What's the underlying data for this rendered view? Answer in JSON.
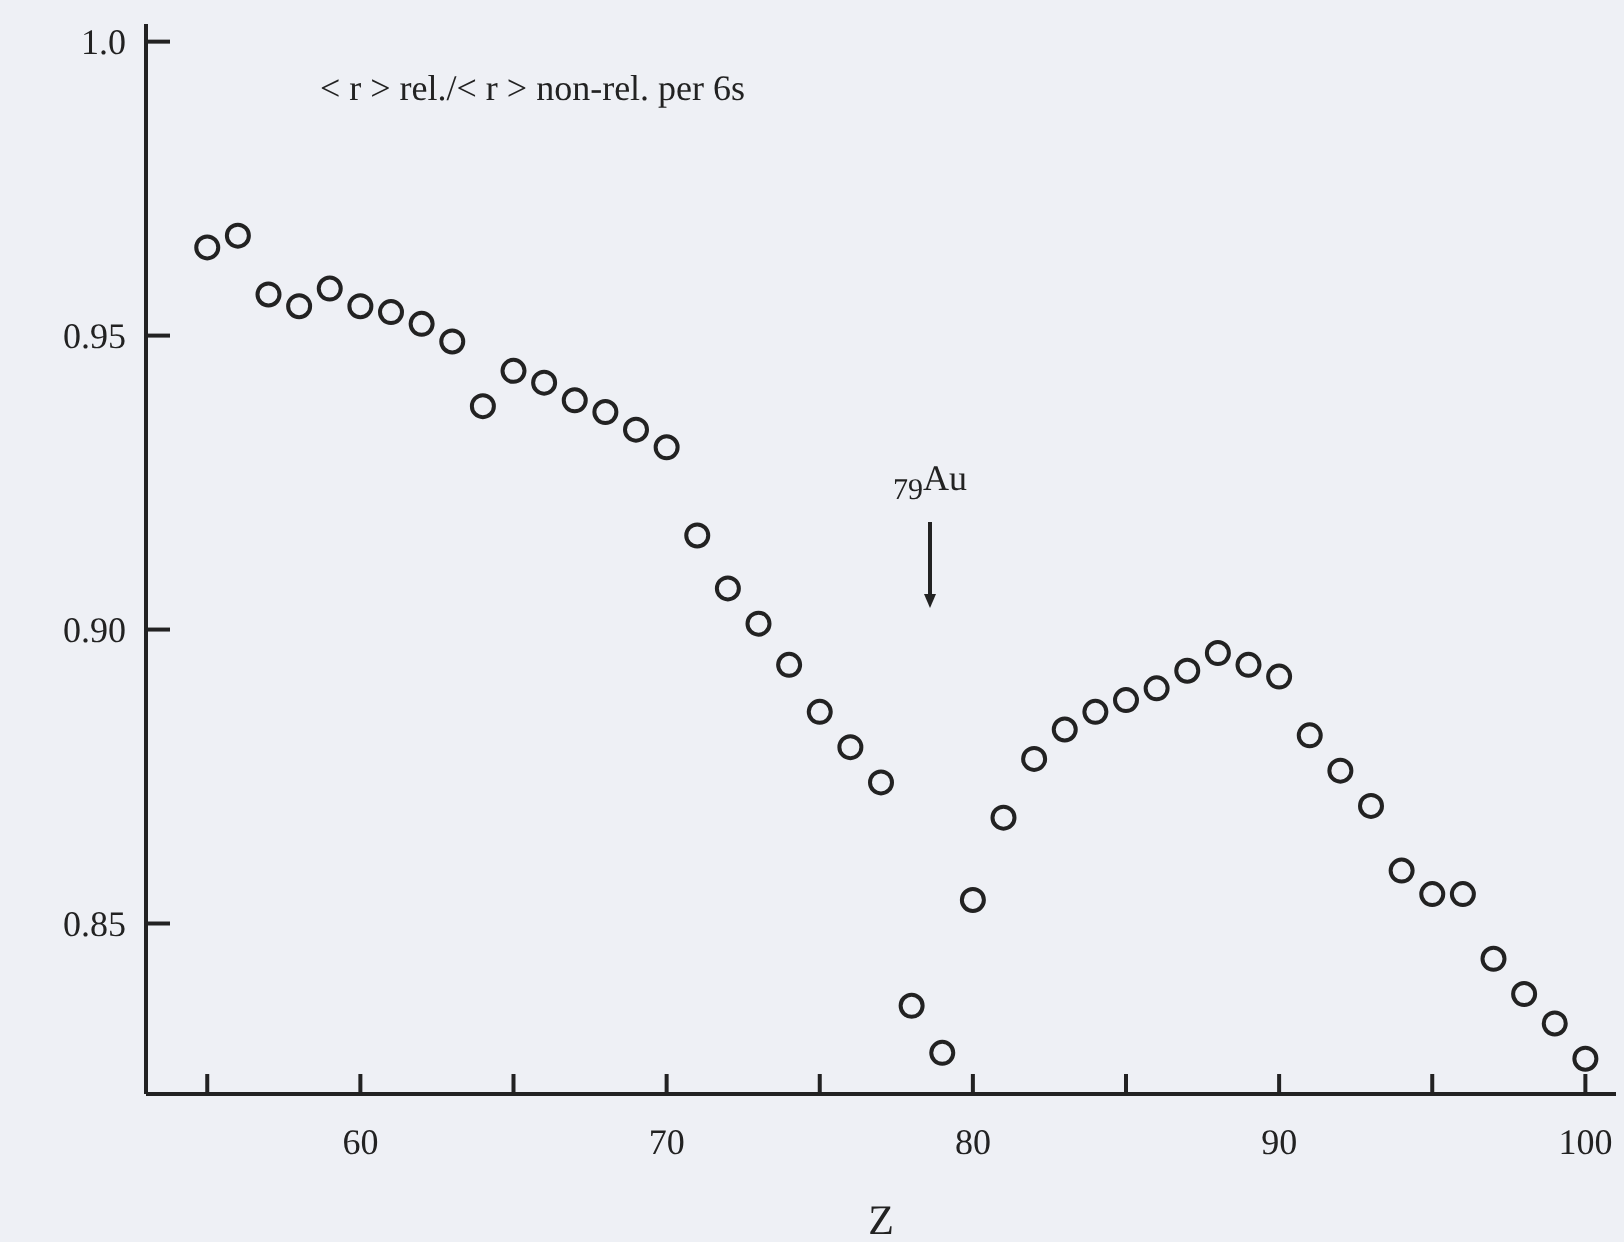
{
  "chart_data": {
    "type": "scatter",
    "xlabel": "Z",
    "x": [
      55,
      56,
      57,
      58,
      59,
      60,
      61,
      62,
      63,
      64,
      65,
      66,
      67,
      68,
      69,
      70,
      71,
      72,
      73,
      74,
      75,
      76,
      77,
      78,
      79,
      80,
      81,
      82,
      83,
      84,
      85,
      86,
      87,
      88,
      89,
      90,
      91,
      92,
      93,
      94,
      95,
      96,
      97,
      98,
      99,
      100
    ],
    "values": [
      0.965,
      0.967,
      0.957,
      0.955,
      0.958,
      0.955,
      0.954,
      0.952,
      0.949,
      0.938,
      0.944,
      0.942,
      0.939,
      0.937,
      0.934,
      0.931,
      0.916,
      0.907,
      0.901,
      0.894,
      0.886,
      0.88,
      0.874,
      0.836,
      0.828,
      0.854,
      0.868,
      0.878,
      0.883,
      0.886,
      0.888,
      0.89,
      0.893,
      0.896,
      0.894,
      0.892,
      0.882,
      0.876,
      0.87,
      0.859,
      0.855,
      0.855,
      0.844,
      0.838,
      0.833,
      0.827
    ],
    "color": "#222222",
    "marker": "circle",
    "xlim": [
      53,
      101
    ],
    "ylim": [
      0.821,
      1.003
    ],
    "xticks": [
      {
        "value": 55,
        "label": null
      },
      60,
      {
        "value": 65,
        "label": null
      },
      70,
      {
        "value": 75,
        "label": null
      },
      80,
      {
        "value": 85,
        "label": null
      },
      90,
      {
        "value": 95,
        "label": null
      },
      100
    ],
    "yticks": [
      0.85,
      {
        "value": 0.9,
        "label": "0.90"
      },
      0.95,
      {
        "value": 1,
        "label": "1.0"
      }
    ],
    "annotations": [
      "< r > rel./< r > non-rel. per 6s",
      "$_{79}$Au"
    ]
  }
}
